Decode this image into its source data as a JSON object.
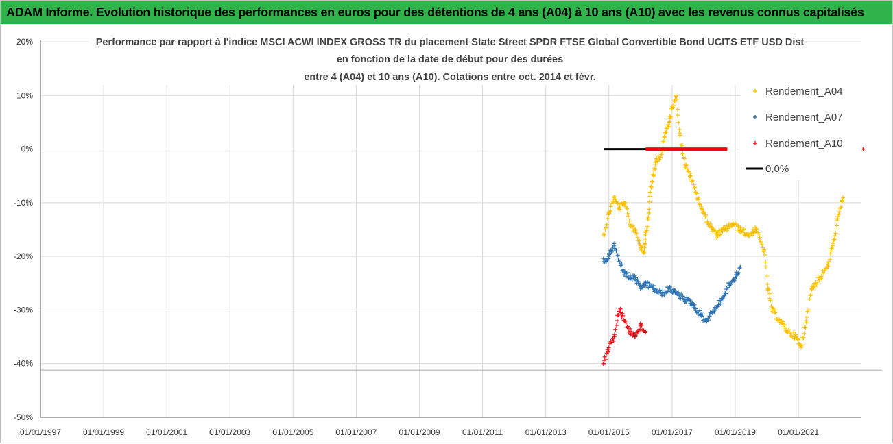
{
  "banner": {
    "title": "ADAM Informe. Evolution historique des performances en euros pour des détentions de 4 ans (A04) à 10 ans (A10) avec les revenus connus capitalisés"
  },
  "chart_data": {
    "type": "scatter",
    "title_lines": [
      "Performance par rapport à l'indice MSCI ACWI INDEX GROSS TR  du placement State Street SPDR FTSE Global Convertible Bond UCITS ETF USD Dist",
      "en fonction de la date de début pour des durées",
      "entre 4 (A04) et 10 ans (A10). Cotations entre oct. 2014 et févr."
    ],
    "xlabel": "",
    "ylabel": "",
    "x_range": [
      "1997-01-01",
      "2022-12-31"
    ],
    "y_range": [
      -50,
      20
    ],
    "y_ticks": [
      {
        "value": 20,
        "label": "20%"
      },
      {
        "value": 10,
        "label": "10%"
      },
      {
        "value": 0,
        "label": "0%"
      },
      {
        "value": -10,
        "label": "-10%"
      },
      {
        "value": -20,
        "label": "-20%"
      },
      {
        "value": -30,
        "label": "-30%"
      },
      {
        "value": -40,
        "label": "-40%"
      },
      {
        "value": -50,
        "label": "-50%"
      }
    ],
    "x_ticks": [
      "01/01/1997",
      "01/01/1999",
      "01/01/2001",
      "01/01/2003",
      "01/01/2005",
      "01/01/2007",
      "01/01/2009",
      "01/01/2011",
      "01/01/2013",
      "01/01/2015",
      "01/01/2017",
      "01/01/2019",
      "01/01/2021"
    ],
    "grid": true,
    "legend_position": "top-right",
    "series": [
      {
        "name": "Rendement_A04",
        "color": "#ffc000",
        "marker": "plus",
        "points": [
          [
            "2014-11-01",
            -16
          ],
          [
            "2015-01-01",
            -12
          ],
          [
            "2015-03-01",
            -9
          ],
          [
            "2015-05-01",
            -11
          ],
          [
            "2015-07-01",
            -10
          ],
          [
            "2015-09-01",
            -14
          ],
          [
            "2015-11-01",
            -15
          ],
          [
            "2016-01-01",
            -18
          ],
          [
            "2016-02-15",
            -19
          ],
          [
            "2016-03-01",
            -16
          ],
          [
            "2016-04-01",
            -13
          ],
          [
            "2016-05-01",
            -7
          ],
          [
            "2016-06-01",
            -5
          ],
          [
            "2016-07-01",
            -2
          ],
          [
            "2016-09-01",
            -1
          ],
          [
            "2016-10-15",
            3
          ],
          [
            "2016-12-01",
            5
          ],
          [
            "2017-01-01",
            8
          ],
          [
            "2017-02-15",
            10
          ],
          [
            "2017-04-01",
            3
          ],
          [
            "2017-06-01",
            -3
          ],
          [
            "2017-08-01",
            -5
          ],
          [
            "2017-10-01",
            -8
          ],
          [
            "2018-01-01",
            -12
          ],
          [
            "2018-03-01",
            -14
          ],
          [
            "2018-06-01",
            -16
          ],
          [
            "2018-09-01",
            -15
          ],
          [
            "2018-12-01",
            -14
          ],
          [
            "2019-03-01",
            -15
          ],
          [
            "2019-06-01",
            -16
          ],
          [
            "2019-09-01",
            -15
          ],
          [
            "2019-12-01",
            -19
          ],
          [
            "2020-01-15",
            -26
          ],
          [
            "2020-03-01",
            -30
          ],
          [
            "2020-06-01",
            -32
          ],
          [
            "2020-09-01",
            -34
          ],
          [
            "2020-12-01",
            -35
          ],
          [
            "2021-02-01",
            -37
          ],
          [
            "2021-04-01",
            -32
          ],
          [
            "2021-06-01",
            -26
          ],
          [
            "2021-09-01",
            -24
          ],
          [
            "2021-12-01",
            -22
          ],
          [
            "2022-02-01",
            -18
          ],
          [
            "2022-04-01",
            -13
          ],
          [
            "2022-06-01",
            -9
          ]
        ]
      },
      {
        "name": "Rendement_A07",
        "color": "#2e75b6",
        "marker": "plus",
        "points": [
          [
            "2014-11-01",
            -21
          ],
          [
            "2015-01-01",
            -20
          ],
          [
            "2015-03-01",
            -18
          ],
          [
            "2015-05-01",
            -21
          ],
          [
            "2015-07-01",
            -23
          ],
          [
            "2015-09-01",
            -24
          ],
          [
            "2015-11-01",
            -24
          ],
          [
            "2016-01-01",
            -26
          ],
          [
            "2016-03-01",
            -25
          ],
          [
            "2016-06-01",
            -26
          ],
          [
            "2016-09-01",
            -27
          ],
          [
            "2016-12-01",
            -26
          ],
          [
            "2017-03-01",
            -27
          ],
          [
            "2017-06-01",
            -28
          ],
          [
            "2017-09-01",
            -29
          ],
          [
            "2017-12-01",
            -31
          ],
          [
            "2018-02-01",
            -32
          ],
          [
            "2018-05-01",
            -30
          ],
          [
            "2018-08-01",
            -28
          ],
          [
            "2018-11-01",
            -25
          ],
          [
            "2019-01-01",
            -24
          ],
          [
            "2019-03-01",
            -22
          ]
        ]
      },
      {
        "name": "Rendement_A10",
        "color": "#e8141a",
        "marker": "plus",
        "points": [
          [
            "2014-11-01",
            -40
          ],
          [
            "2015-01-01",
            -37
          ],
          [
            "2015-03-01",
            -35
          ],
          [
            "2015-05-01",
            -30
          ],
          [
            "2015-07-01",
            -32
          ],
          [
            "2015-09-01",
            -34
          ],
          [
            "2015-11-01",
            -35
          ],
          [
            "2016-01-01",
            -33
          ],
          [
            "2016-03-01",
            -34
          ]
        ]
      },
      {
        "name": "0,0%",
        "color": "#000000",
        "marker": "line",
        "points": [
          [
            "2014-11-01",
            0
          ],
          [
            "2018-10-01",
            0
          ]
        ]
      }
    ],
    "highlight_segment": {
      "color": "#ff0000",
      "from": "2016-03-01",
      "to": "2018-10-01",
      "y": 0
    }
  }
}
